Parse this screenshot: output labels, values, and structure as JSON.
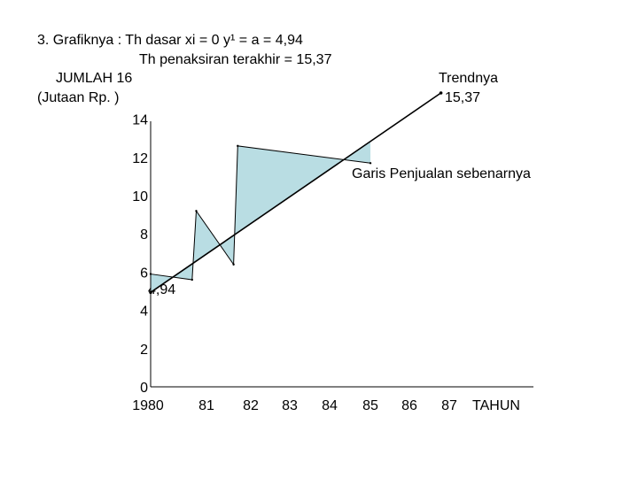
{
  "header": {
    "line1": "3. Grafiknya : Th dasar xi = 0   y¹ = a = 4,94",
    "line2": "Th penaksiran terakhir = 15,37"
  },
  "chart_data": {
    "type": "line",
    "ylabel_line1": "JUMLAH 16",
    "ylabel_line2": "(Jutaan Rp. )",
    "xlabel": "TAHUN",
    "ylim": [
      0,
      16
    ],
    "y_ticks": [
      "0",
      "2",
      "4",
      "6",
      "8",
      "10",
      "12",
      "14"
    ],
    "x_ticks": [
      "1980",
      "81",
      "82",
      "83",
      "84",
      "85",
      "86",
      "87"
    ],
    "series": [
      {
        "name": "Trendnya",
        "x": [
          1980,
          1987
        ],
        "values": [
          4.94,
          15.37
        ]
      },
      {
        "name": "Garis Penjualan sebenarnya",
        "x": [
          1980,
          1981,
          1981.1,
          1982,
          1982.1,
          1985.3
        ],
        "values": [
          5.9,
          5.6,
          9.2,
          6.4,
          12.6,
          11.7
        ]
      }
    ],
    "annotations": {
      "trend_label": "Trendnya",
      "trend_value": "15,37",
      "actual_label": "Garis Penjualan sebenarnya",
      "start_value": "4,94"
    },
    "colors": {
      "fill": "#b9dde3",
      "line": "#000000"
    }
  }
}
